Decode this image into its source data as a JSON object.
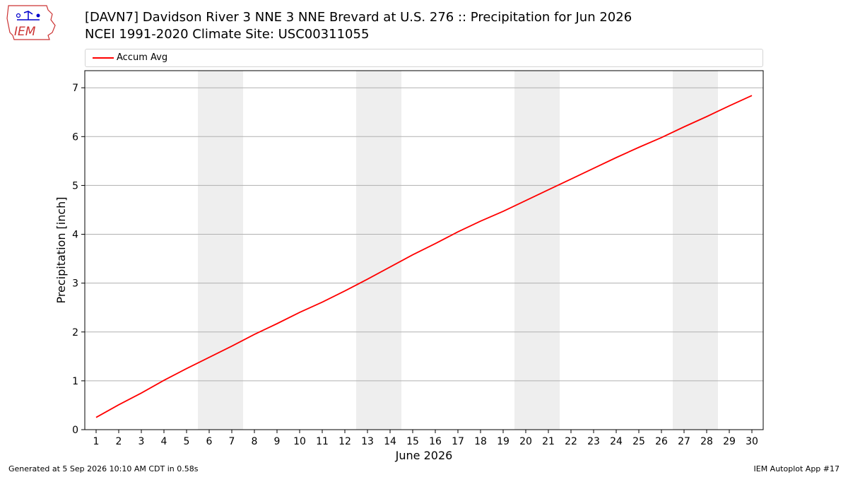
{
  "header": {
    "title_line1": "[DAVN7] Davidson River 3 NNE 3 NNE Brevard at U.S. 276 :: Precipitation for Jun 2026",
    "title_line2": "NCEI 1991-2020 Climate Site: USC00311055"
  },
  "logo": {
    "text": "IEM",
    "icon": "iem-iowa-logo-icon",
    "color": "#0000cc",
    "outline_color": "#cc3333"
  },
  "footer": {
    "generated": "Generated at 5 Sep 2026 10:10 AM CDT in 0.58s",
    "app": "IEM Autoplot App #17"
  },
  "chart_data": {
    "type": "line",
    "xlabel": "June 2026",
    "ylabel": "Precipitation [inch]",
    "x": [
      1,
      2,
      3,
      4,
      5,
      6,
      7,
      8,
      9,
      10,
      11,
      12,
      13,
      14,
      15,
      16,
      17,
      18,
      19,
      20,
      21,
      22,
      23,
      24,
      25,
      26,
      27,
      28,
      29,
      30
    ],
    "x_tick_labels": [
      "1",
      "2",
      "3",
      "4",
      "5",
      "6",
      "7",
      "8",
      "9",
      "10",
      "11",
      "12",
      "13",
      "14",
      "15",
      "16",
      "17",
      "18",
      "19",
      "20",
      "21",
      "22",
      "23",
      "24",
      "25",
      "26",
      "27",
      "28",
      "29",
      "30"
    ],
    "xlim": [
      0.5,
      30.5
    ],
    "ylim": [
      0,
      7.35
    ],
    "y_ticks": [
      0,
      1,
      2,
      3,
      4,
      5,
      6,
      7
    ],
    "grid": "y",
    "series": [
      {
        "name": "Accum Avg",
        "color": "#ff0000",
        "values": [
          0.25,
          0.51,
          0.75,
          1.01,
          1.25,
          1.48,
          1.71,
          1.95,
          2.17,
          2.4,
          2.61,
          2.84,
          3.08,
          3.33,
          3.58,
          3.81,
          4.05,
          4.27,
          4.47,
          4.69,
          4.91,
          5.13,
          5.35,
          5.57,
          5.78,
          5.98,
          6.2,
          6.41,
          6.63,
          6.84
        ]
      }
    ],
    "weekend_shading": [
      [
        6,
        7
      ],
      [
        13,
        14
      ],
      [
        20,
        21
      ],
      [
        27,
        28
      ]
    ],
    "shading_color": "#eeeeee",
    "legend_position": "top, above plot"
  }
}
